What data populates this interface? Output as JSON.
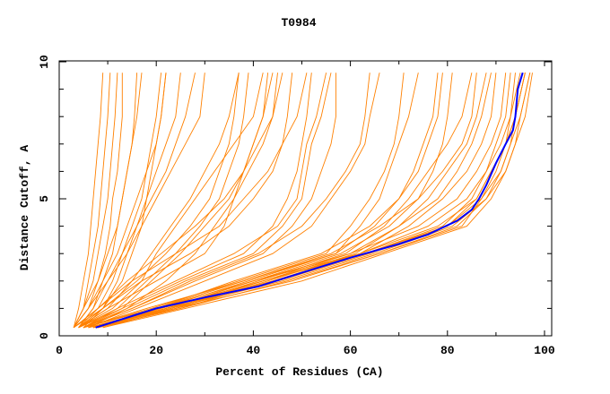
{
  "chart_data": {
    "type": "line",
    "title": "T0984",
    "xlabel": "Percent of Residues (CA)",
    "ylabel": "Distance Cutoff, A",
    "xlim": [
      0,
      101.5
    ],
    "ylim": [
      0,
      10
    ],
    "xticks": [
      "0",
      "20",
      "40",
      "60",
      "80",
      "100"
    ],
    "yticks": [
      "0",
      "5",
      "10"
    ],
    "grid": false,
    "colors": {
      "models": "#ff8000",
      "highlight": "#0000ff"
    },
    "y_levels": [
      0.3,
      1,
      2,
      3,
      4,
      5,
      6,
      7,
      8,
      9.6
    ],
    "model_series_x": [
      [
        3,
        4,
        5,
        6,
        6.5,
        7,
        7.5,
        8,
        8.5,
        9
      ],
      [
        3,
        5,
        7,
        8,
        9,
        10,
        10.5,
        11,
        11.5,
        12
      ],
      [
        3,
        6,
        8,
        9.5,
        10.5,
        11,
        12,
        12.5,
        13,
        13
      ],
      [
        4,
        7,
        9,
        11,
        12,
        13,
        14,
        15,
        16,
        17
      ],
      [
        3,
        6,
        9,
        12,
        14,
        16,
        18,
        20,
        21,
        22
      ],
      [
        4,
        8,
        11,
        13,
        15,
        17,
        18,
        19,
        20,
        21
      ],
      [
        3,
        5,
        8,
        10,
        12,
        13,
        14,
        15,
        15.5,
        16
      ],
      [
        4,
        7,
        10,
        13,
        16,
        19,
        22,
        24,
        26,
        28
      ],
      [
        3,
        6,
        10,
        14,
        17,
        20,
        23,
        26,
        29,
        30
      ],
      [
        4,
        9,
        13,
        15,
        17,
        18,
        19,
        20,
        21,
        22
      ],
      [
        3,
        5,
        6,
        7,
        8,
        8.5,
        9,
        9.5,
        10,
        10.5
      ],
      [
        5,
        9,
        12,
        14,
        16,
        18,
        20,
        22,
        24,
        25
      ],
      [
        4,
        10,
        15,
        19,
        23,
        27,
        30,
        33,
        35,
        37
      ],
      [
        3,
        9,
        16,
        22,
        27,
        31,
        33,
        35,
        36,
        37
      ],
      [
        5,
        12,
        18,
        24,
        29,
        33,
        35,
        37,
        38,
        39
      ],
      [
        4,
        11,
        17,
        20,
        24,
        28,
        32,
        36,
        40,
        42
      ],
      [
        3,
        8,
        14,
        21,
        28,
        34,
        38,
        41,
        44,
        46
      ],
      [
        5,
        13,
        19,
        25,
        30,
        35,
        38,
        40,
        42,
        44
      ],
      [
        4,
        10,
        20,
        30,
        34,
        36,
        38,
        40,
        42,
        43
      ],
      [
        3,
        8,
        15,
        24,
        33,
        38,
        43,
        46,
        49,
        51
      ],
      [
        4,
        9,
        17,
        27,
        35,
        40,
        44,
        46,
        47,
        48
      ],
      [
        6,
        14,
        22,
        28,
        32,
        36,
        39,
        42,
        44,
        45
      ],
      [
        5,
        14,
        26,
        40,
        46,
        50,
        51,
        52,
        54,
        56
      ],
      [
        4,
        12,
        24,
        36,
        45,
        49,
        50,
        51,
        53,
        55
      ],
      [
        5,
        15,
        28,
        42,
        48,
        52,
        54,
        56,
        57,
        57
      ],
      [
        4,
        13,
        25,
        38,
        44,
        47,
        49,
        50,
        51,
        52
      ],
      [
        6,
        16,
        30,
        44,
        52,
        56,
        60,
        63,
        64,
        66
      ],
      [
        5,
        15,
        27,
        41,
        50,
        55,
        59,
        62,
        63,
        64
      ],
      [
        5,
        20,
        36,
        54,
        64,
        70,
        74,
        76,
        78,
        79
      ],
      [
        6,
        22,
        40,
        58,
        68,
        74,
        77,
        79,
        80,
        81
      ],
      [
        5,
        18,
        38,
        56,
        66,
        74,
        79,
        83,
        85,
        86
      ],
      [
        7,
        24,
        42,
        60,
        70,
        76,
        80,
        84,
        86,
        88
      ],
      [
        6,
        21,
        39,
        57,
        62,
        66,
        68,
        70,
        72,
        74
      ],
      [
        5,
        19,
        37,
        55,
        60,
        64,
        67,
        69,
        70,
        71
      ],
      [
        8,
        25,
        44,
        62,
        72,
        79,
        84,
        87,
        89,
        90
      ],
      [
        6,
        23,
        41,
        59,
        67,
        72,
        76,
        80,
        83,
        85
      ],
      [
        7,
        24,
        43,
        61,
        70,
        78,
        82,
        85,
        87,
        89
      ],
      [
        5,
        20,
        38,
        57,
        65,
        70,
        73,
        75,
        77,
        78
      ],
      [
        6,
        22,
        40,
        60,
        74,
        82,
        86,
        89,
        91,
        92
      ],
      [
        7,
        23,
        42,
        62,
        76,
        84,
        88,
        90,
        92,
        93
      ],
      [
        7,
        20,
        40,
        62,
        78,
        86,
        89,
        92,
        94,
        96
      ],
      [
        8,
        22,
        45,
        64,
        80,
        87,
        91,
        93,
        95,
        97
      ],
      [
        9,
        24,
        48,
        66,
        82,
        88,
        92,
        94,
        96,
        97.5
      ],
      [
        7,
        21,
        42,
        63,
        79,
        85,
        88,
        91,
        93,
        95
      ],
      [
        8,
        23,
        46,
        65,
        81,
        88,
        91,
        93,
        94,
        96
      ],
      [
        9,
        26,
        50,
        67,
        84,
        89,
        92,
        94,
        95,
        97
      ],
      [
        8,
        25,
        47,
        66,
        83,
        87,
        90,
        92,
        93,
        94
      ],
      [
        7,
        22,
        44,
        63,
        80,
        86,
        89,
        92,
        94,
        96
      ]
    ],
    "highlight_series": {
      "x": [
        7.5,
        20,
        30,
        41,
        50,
        60,
        70,
        76,
        82,
        85,
        86.5,
        88,
        90,
        92,
        93.5,
        94,
        94.5,
        95.5
      ],
      "y": [
        0.3,
        1,
        1.4,
        1.8,
        2.3,
        2.85,
        3.35,
        3.7,
        4.2,
        4.6,
        5,
        5.5,
        6.3,
        7,
        7.5,
        8,
        9,
        9.6
      ]
    }
  }
}
